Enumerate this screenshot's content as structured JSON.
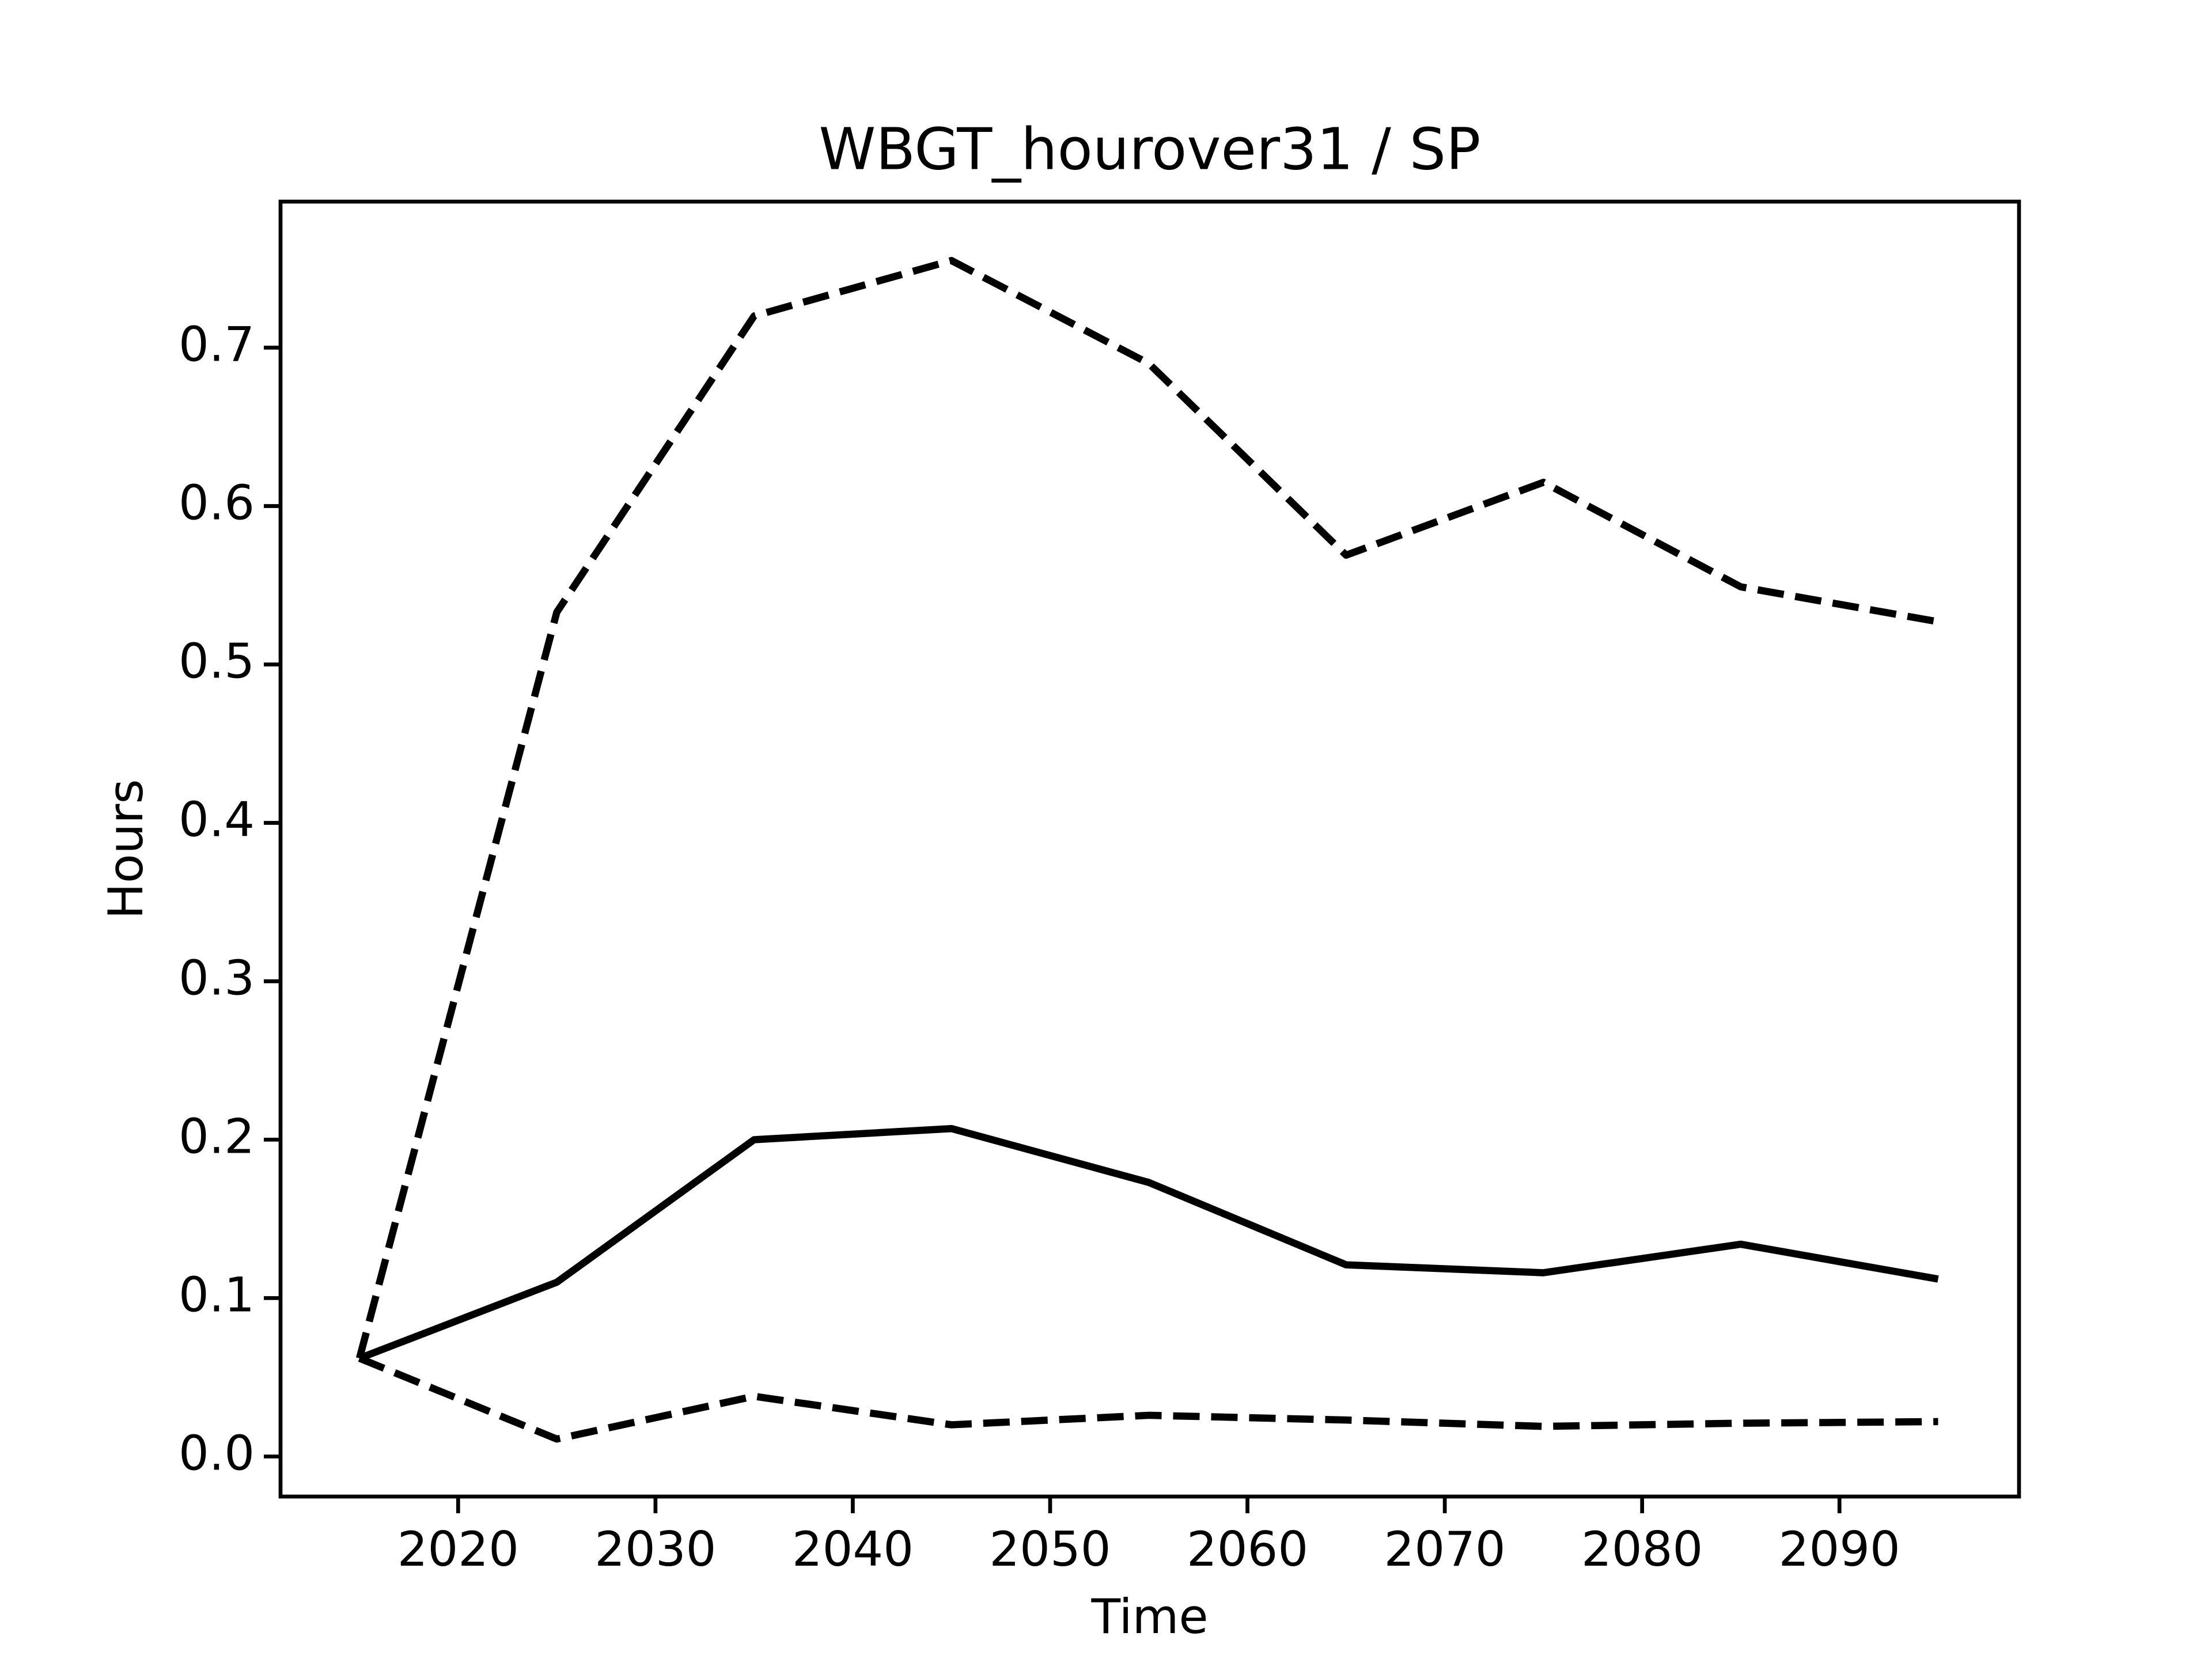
{
  "chart_data": {
    "type": "line",
    "title": "WBGT_hourover31 / SP",
    "xlabel": "Time",
    "ylabel": "Hours",
    "x": [
      2015,
      2025,
      2035,
      2045,
      2055,
      2065,
      2075,
      2085,
      2095
    ],
    "series": [
      {
        "color": "#000000",
        "dashed": false,
        "values": [
          0.062,
          0.11,
          0.2,
          0.207,
          0.173,
          0.121,
          0.116,
          0.134,
          0.112
        ]
      },
      {
        "color": "#000000",
        "dashed": true,
        "values": [
          0.062,
          0.533,
          0.72,
          0.755,
          0.69,
          0.569,
          0.615,
          0.549,
          0.527
        ]
      },
      {
        "color": "#000000",
        "dashed": true,
        "values": [
          0.062,
          0.011,
          0.038,
          0.02,
          0.026,
          0.023,
          0.019,
          0.021,
          0.022
        ]
      }
    ],
    "xlim": [
      2011.0,
      2099.1
    ],
    "xticks": [
      2020,
      2030,
      2040,
      2050,
      2060,
      2070,
      2080,
      2090
    ],
    "ylim": [
      -0.0253,
      0.7922
    ],
    "yticks": [
      {
        "value": 0,
        "label": "0.0"
      },
      0.1,
      0.2,
      0.3,
      0.4,
      0.5,
      0.6,
      0.7
    ],
    "grid": false
  }
}
